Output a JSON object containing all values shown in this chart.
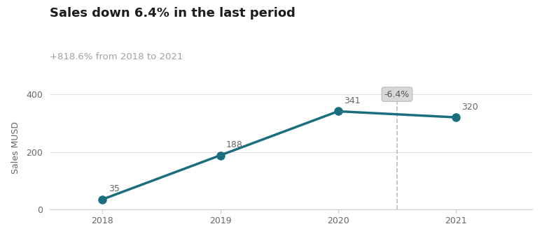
{
  "title": "Sales down 6.4% in the last period",
  "subtitle": "+818.6% from 2018 to 2021",
  "ylabel": "Sales MUSD",
  "years": [
    2018,
    2019,
    2020,
    2021
  ],
  "values": [
    35,
    188,
    341,
    320
  ],
  "line_color": "#1a6e7e",
  "marker_color": "#1a6e7e",
  "title_color": "#1c1c1c",
  "subtitle_color": "#a0a0a8",
  "ylabel_color": "#666666",
  "tick_color": "#666666",
  "bg_color": "#ffffff",
  "plot_bg_color": "#ffffff",
  "annotation_label": "-6.4%",
  "annotation_box_facecolor": "#d8d8d8",
  "annotation_box_edgecolor": "#bbbbbb",
  "annotation_text_color": "#555555",
  "dashed_line_x": 2020.5,
  "dashed_line_color": "#bbbbbb",
  "grid_color": "#e0e0e0",
  "ylim": [
    0,
    430
  ],
  "yticks": [
    0,
    200,
    400
  ],
  "xlim": [
    2017.55,
    2021.65
  ],
  "title_fontsize": 13,
  "subtitle_fontsize": 9.5,
  "ylabel_fontsize": 9,
  "data_label_fontsize": 9,
  "tick_fontsize": 9,
  "line_width": 2.5,
  "marker_size": 8
}
